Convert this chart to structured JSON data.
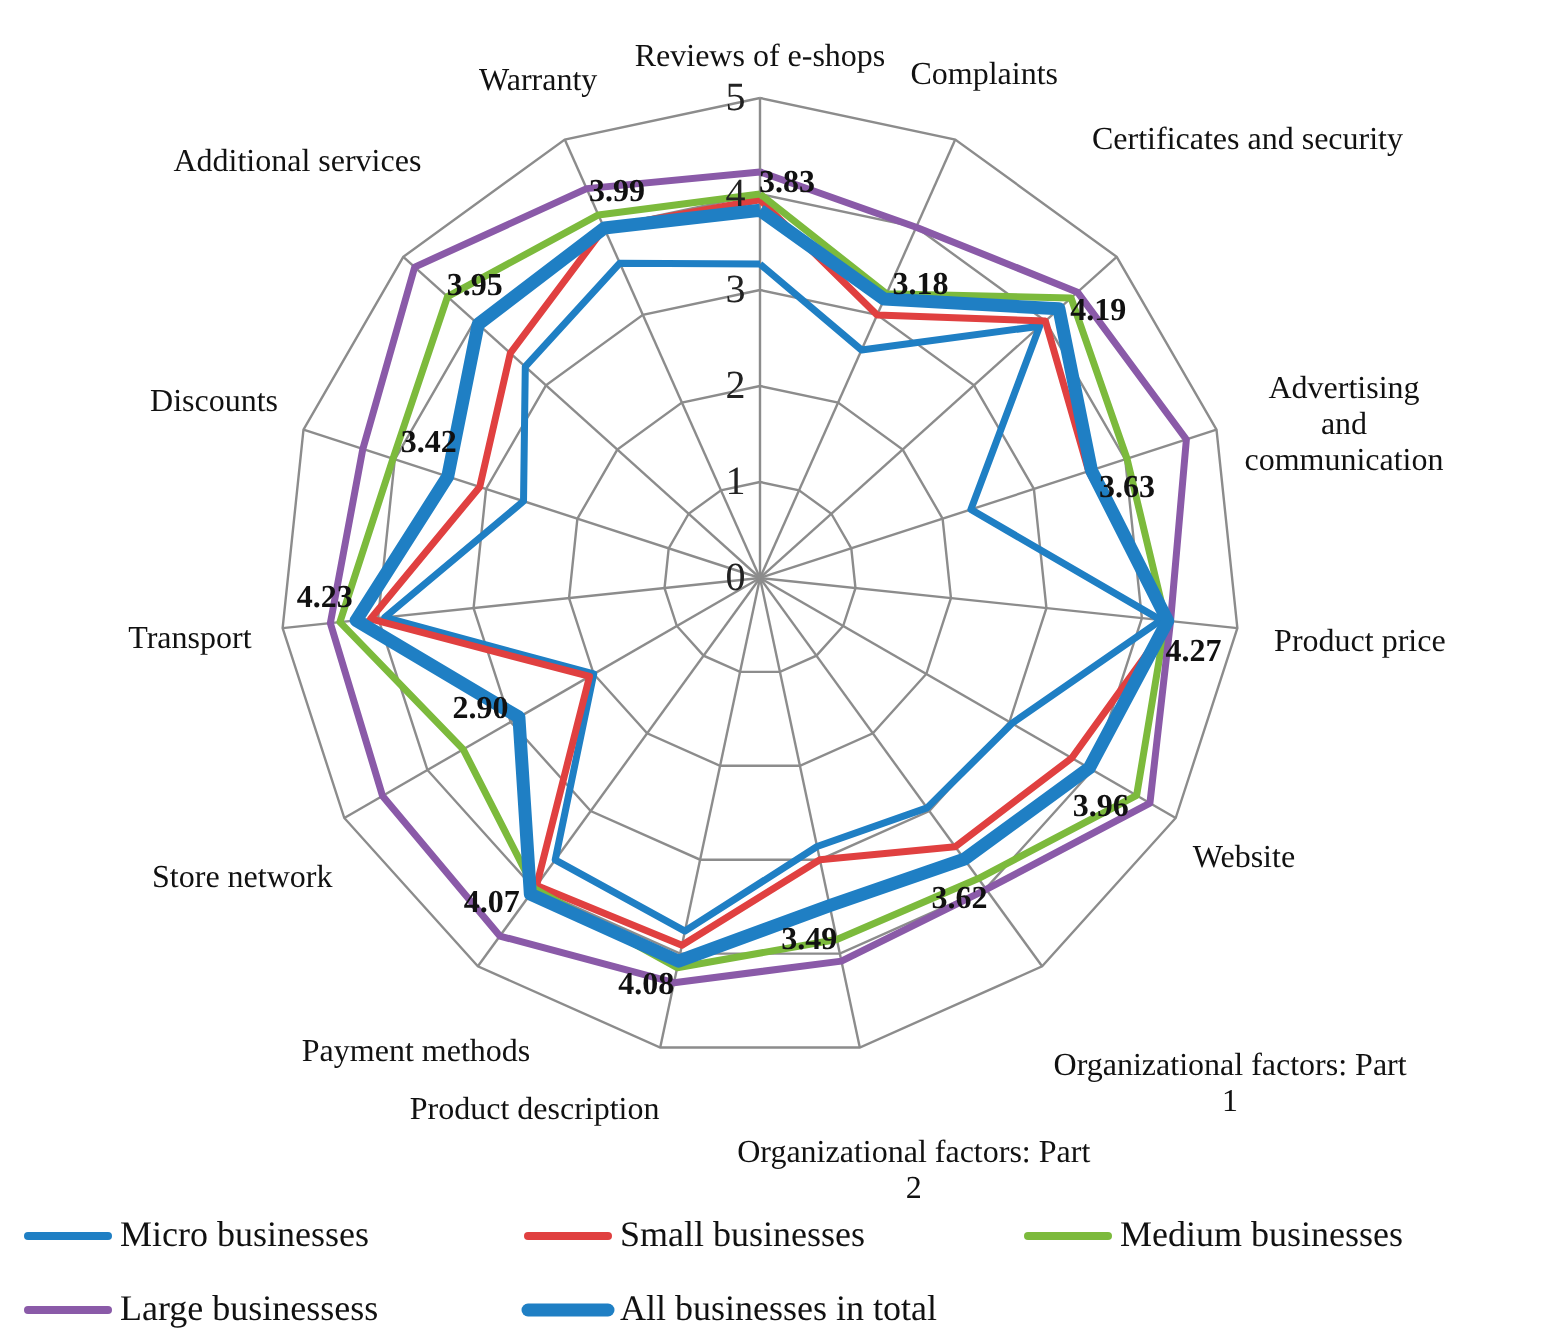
{
  "chart_data": {
    "type": "radar",
    "categories": [
      "Reviews of e-shops",
      "Complaints",
      "Certificates and security",
      "Advertising and\ncommunication",
      "Product price",
      "Website",
      "Organizational factors: Part 1",
      "Organizational factors: Part 2",
      "Product description",
      "Payment methods",
      "Store network",
      "Transport",
      "Discounts",
      "Additional services",
      "Warranty"
    ],
    "series": [
      {
        "name": "Micro businesses",
        "color": "#1f7fc4",
        "values": [
          3.27,
          2.6,
          3.92,
          2.31,
          4.2,
          3.03,
          2.96,
          2.86,
          3.76,
          3.63,
          2.0,
          3.93,
          2.59,
          3.29,
          3.59
        ]
      },
      {
        "name": "Small businesses",
        "color": "#e04040",
        "values": [
          3.94,
          3.0,
          4.0,
          3.6,
          4.3,
          3.75,
          3.46,
          3.0,
          3.91,
          3.96,
          2.05,
          4.08,
          3.07,
          3.5,
          3.99
        ]
      },
      {
        "name": "Medium businesses",
        "color": "#7cba3c",
        "values": [
          4.0,
          3.24,
          4.36,
          4.02,
          4.25,
          4.53,
          3.87,
          3.85,
          4.15,
          4.0,
          3.57,
          4.4,
          4.02,
          4.38,
          4.14
        ]
      },
      {
        "name": "Large businessess",
        "color": "#8a5aa8",
        "values": [
          4.23,
          4.0,
          4.45,
          4.67,
          4.3,
          4.69,
          4.01,
          4.08,
          4.31,
          4.61,
          4.54,
          4.5,
          4.35,
          4.84,
          4.44
        ]
      },
      {
        "name": "All businesses in total",
        "color": "#1f7fc4",
        "values": [
          3.83,
          3.18,
          4.19,
          3.63,
          4.27,
          3.96,
          3.62,
          3.49,
          4.08,
          4.07,
          2.9,
          4.23,
          3.42,
          3.95,
          3.99
        ],
        "value_labels": [
          "3.83",
          "3.18",
          "4.19",
          "3.63",
          "4.27",
          "3.96",
          "3.62",
          "3.49",
          "4.08",
          "4.07",
          "2.90",
          "4.23",
          "3.42",
          "3.95",
          "3.99"
        ]
      }
    ],
    "ylim": [
      0,
      5
    ],
    "yticks": [
      0,
      1,
      2,
      3,
      4,
      5
    ],
    "grid": true,
    "legend": "bottom"
  }
}
